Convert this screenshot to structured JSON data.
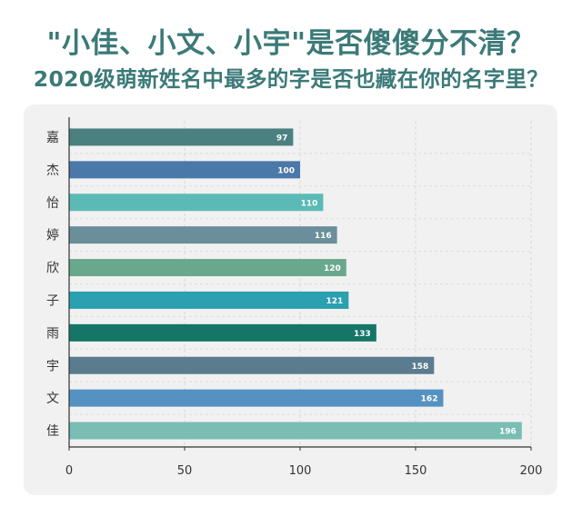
{
  "title": "\"小佳、小文、小宇\"是否傻傻分不清？",
  "subtitle": "2020级萌新姓名中最多的字是否也藏在你的名字里？",
  "chart_data": {
    "type": "bar",
    "orientation": "horizontal",
    "categories": [
      "嘉",
      "杰",
      "怡",
      "婷",
      "欣",
      "子",
      "雨",
      "宇",
      "文",
      "佳"
    ],
    "values": [
      97,
      100,
      110,
      116,
      120,
      121,
      133,
      158,
      162,
      196
    ],
    "colors": [
      "#4a8080",
      "#4a78a8",
      "#5bbab5",
      "#6a8e9a",
      "#6aa88e",
      "#2aa0b0",
      "#157668",
      "#5b7c8e",
      "#5592c2",
      "#79bdb3"
    ],
    "xlim": [
      0,
      200
    ],
    "xticks": [
      0,
      50,
      100,
      150,
      200
    ],
    "grid": true,
    "xlabel": "",
    "ylabel": ""
  }
}
